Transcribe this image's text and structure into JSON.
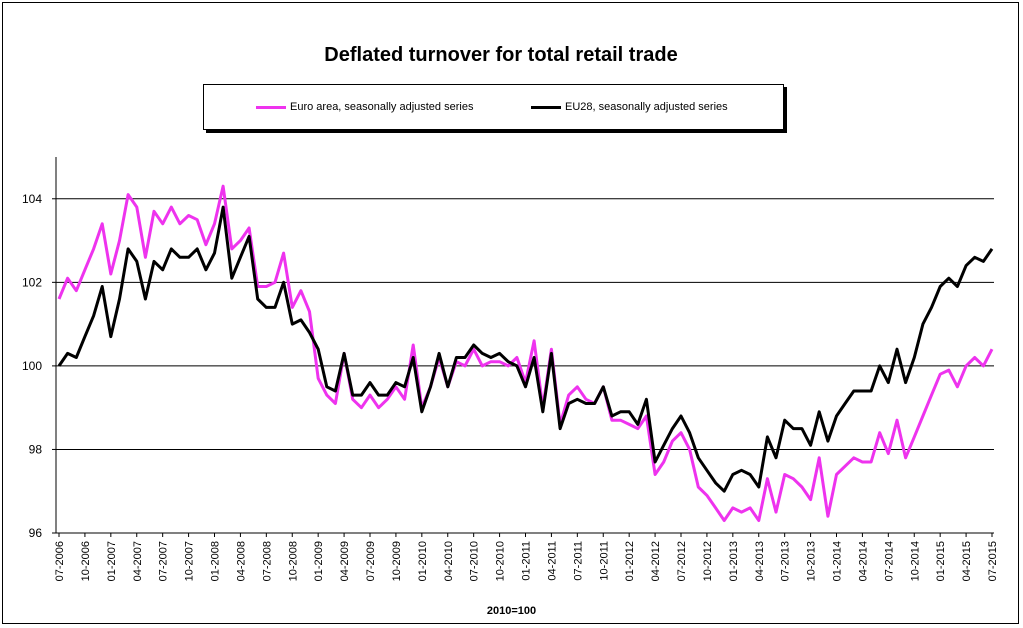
{
  "chart_data": {
    "type": "line",
    "title": "Deflated turnover for total retail trade",
    "xlabel": "2010=100",
    "ylabel": "",
    "ylim": [
      96,
      105
    ],
    "yticks": [
      96,
      98,
      100,
      102,
      104
    ],
    "grid": true,
    "legend_placement": "top-center",
    "x_tick_labels": [
      "07-2006",
      "10-2006",
      "01-2007",
      "04-2007",
      "07-2007",
      "10-2007",
      "01-2008",
      "04-2008",
      "07-2008",
      "10-2008",
      "01-2009",
      "04-2009",
      "07-2009",
      "10-2009",
      "01-2010",
      "04-2010",
      "07-2010",
      "10-2010",
      "01-2011",
      "04-2011",
      "07-2011",
      "10-2011",
      "01-2012",
      "04-2012",
      "07-2012",
      "10-2012",
      "01-2013",
      "04-2013",
      "07-2013",
      "10-2013",
      "01-2014",
      "04-2014",
      "07-2014",
      "10-2014",
      "01-2015",
      "04-2015",
      "07-2015"
    ],
    "series": [
      {
        "name": "Euro area, seasonally adjusted series",
        "color": "#ee33ee",
        "values": [
          101.6,
          102.1,
          101.8,
          102.3,
          102.8,
          103.4,
          102.2,
          103.0,
          104.1,
          103.8,
          102.6,
          103.7,
          103.4,
          103.8,
          103.4,
          103.6,
          103.5,
          102.9,
          103.4,
          104.3,
          102.8,
          103.0,
          103.3,
          101.9,
          101.9,
          102.0,
          102.7,
          101.4,
          101.8,
          101.3,
          99.7,
          99.3,
          99.1,
          100.3,
          99.2,
          99.0,
          99.3,
          99.0,
          99.2,
          99.5,
          99.2,
          100.5,
          99.0,
          99.5,
          100.2,
          99.5,
          100.1,
          100.0,
          100.4,
          100.0,
          100.1,
          100.1,
          100.0,
          100.2,
          99.6,
          100.6,
          99.0,
          100.4,
          98.6,
          99.3,
          99.5,
          99.2,
          99.1,
          99.5,
          98.7,
          98.7,
          98.6,
          98.5,
          98.8,
          97.4,
          97.7,
          98.2,
          98.4,
          98.0,
          97.1,
          96.9,
          96.6,
          96.3,
          96.6,
          96.5,
          96.6,
          96.3,
          97.3,
          96.5,
          97.4,
          97.3,
          97.1,
          96.8,
          97.8,
          96.4,
          97.4,
          97.6,
          97.8,
          97.7,
          97.7,
          98.4,
          97.9,
          98.7,
          97.8,
          98.3,
          98.8,
          99.3,
          99.8,
          99.9,
          99.5,
          100.0,
          100.2,
          100.0,
          100.4
        ]
      },
      {
        "name": "EU28, seasonally adjusted series",
        "color": "#000000",
        "values": [
          100.0,
          100.3,
          100.2,
          100.7,
          101.2,
          101.9,
          100.7,
          101.6,
          102.8,
          102.5,
          101.6,
          102.5,
          102.3,
          102.8,
          102.6,
          102.6,
          102.8,
          102.3,
          102.7,
          103.8,
          102.1,
          102.6,
          103.1,
          101.6,
          101.4,
          101.4,
          102.0,
          101.0,
          101.1,
          100.8,
          100.4,
          99.5,
          99.4,
          100.3,
          99.3,
          99.3,
          99.6,
          99.3,
          99.3,
          99.6,
          99.5,
          100.2,
          98.9,
          99.5,
          100.3,
          99.5,
          100.2,
          100.2,
          100.5,
          100.3,
          100.2,
          100.3,
          100.1,
          100.0,
          99.5,
          100.2,
          98.9,
          100.3,
          98.5,
          99.1,
          99.2,
          99.1,
          99.1,
          99.5,
          98.8,
          98.9,
          98.9,
          98.6,
          99.2,
          97.7,
          98.1,
          98.5,
          98.8,
          98.4,
          97.8,
          97.5,
          97.2,
          97.0,
          97.4,
          97.5,
          97.4,
          97.1,
          98.3,
          97.8,
          98.7,
          98.5,
          98.5,
          98.1,
          98.9,
          98.2,
          98.8,
          99.1,
          99.4,
          99.4,
          99.4,
          100.0,
          99.6,
          100.4,
          99.6,
          100.2,
          101.0,
          101.4,
          101.9,
          102.1,
          101.9,
          102.4,
          102.6,
          102.5,
          102.8
        ]
      }
    ]
  }
}
